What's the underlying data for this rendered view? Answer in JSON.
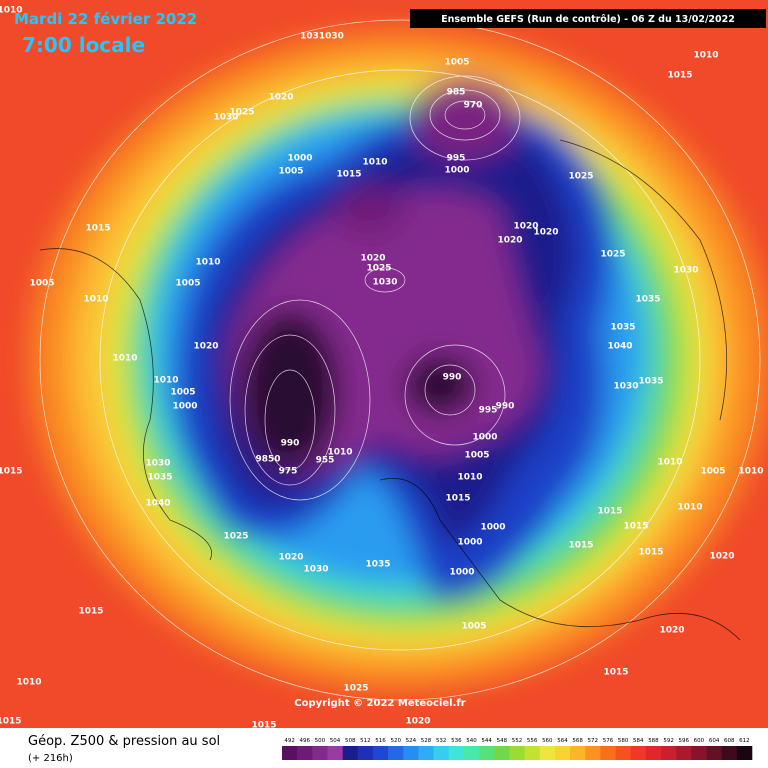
{
  "header": {
    "date": "Mardi 22 février 2022",
    "time": "7:00 locale",
    "run": "Ensemble GEFS  (Run de contrôle)  - 06 Z du 13/02/2022"
  },
  "copyright": "Copyright © 2022 Meteociel.fr",
  "footer": {
    "title": "Géop. Z500 & pression au sol",
    "subtitle": "(+ 216h)"
  },
  "pressure_labels": [
    "1010",
    "1031030",
    "1005",
    "1015",
    "1010",
    "1020",
    "1025",
    "1030",
    "985",
    "970",
    "1000",
    "1005",
    "1010",
    "1015",
    "995",
    "1000",
    "1025",
    "1015",
    "1020",
    "1020",
    "1020",
    "1020",
    "1025",
    "1030",
    "1010",
    "1005",
    "1005",
    "1025",
    "1030",
    "1035",
    "1010",
    "1035",
    "1040",
    "1020",
    "1010",
    "990",
    "1030",
    "1035",
    "1010",
    "1005",
    "1000",
    "995",
    "990",
    "1000",
    "990",
    "1010",
    "1005",
    "9850",
    "975",
    "955",
    "1030",
    "1035",
    "1010",
    "1005",
    "1010",
    "1015",
    "1010",
    "1015",
    "1040",
    "1010",
    "1015",
    "1000",
    "1000",
    "1015",
    "1025",
    "1015",
    "1020",
    "1035",
    "1015",
    "1030",
    "1020",
    "1000",
    "1015",
    "1005",
    "1020",
    "1010",
    "1015",
    "1025",
    "1015",
    "1015",
    "1020"
  ],
  "colorbar": {
    "labels": [
      "492",
      "496",
      "500",
      "504",
      "508",
      "512",
      "516",
      "520",
      "524",
      "528",
      "532",
      "536",
      "540",
      "544",
      "548",
      "552",
      "556",
      "560",
      "564",
      "568",
      "572",
      "576",
      "580",
      "584",
      "588",
      "592",
      "596",
      "600",
      "604",
      "608",
      "612"
    ],
    "colors": [
      "#5a1060",
      "#6e1a78",
      "#842a8e",
      "#9a3aa4",
      "#1a1e8c",
      "#1e30b4",
      "#1e48d2",
      "#2468e6",
      "#2a8cf0",
      "#30acf4",
      "#38ccf0",
      "#40e4d8",
      "#48e8a8",
      "#58e07a",
      "#70d84c",
      "#98dc34",
      "#c4e030",
      "#eee640",
      "#fcd232",
      "#fcb428",
      "#fc9220",
      "#f8701e",
      "#f4521e",
      "#ee3a22",
      "#e0282a",
      "#c8202c",
      "#a81a2c",
      "#86142a",
      "#641026",
      "#400a1e",
      "#1a0610"
    ]
  }
}
